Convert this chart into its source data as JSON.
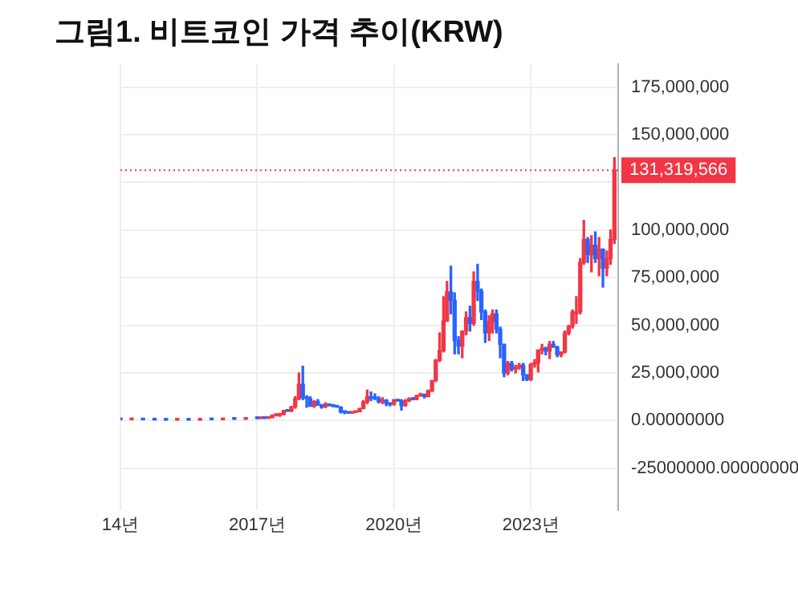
{
  "chart_data": {
    "type": "candlestick",
    "title": "그림1. 비트코인 가격 추이(KRW)",
    "x": [
      "2014-01",
      "2014-04",
      "2014-07",
      "2014-10",
      "2015-01",
      "2015-04",
      "2015-07",
      "2015-10",
      "2016-01",
      "2016-04",
      "2016-07",
      "2016-10",
      "2017-01",
      "2017-02",
      "2017-03",
      "2017-04",
      "2017-05",
      "2017-06",
      "2017-07",
      "2017-08",
      "2017-09",
      "2017-10",
      "2017-11",
      "2017-12",
      "2018-01",
      "2018-02",
      "2018-03",
      "2018-04",
      "2018-05",
      "2018-06",
      "2018-07",
      "2018-08",
      "2018-09",
      "2018-10",
      "2018-11",
      "2018-12",
      "2019-01",
      "2019-02",
      "2019-03",
      "2019-04",
      "2019-05",
      "2019-06",
      "2019-07",
      "2019-08",
      "2019-09",
      "2019-10",
      "2019-11",
      "2019-12",
      "2020-01",
      "2020-02",
      "2020-03",
      "2020-04",
      "2020-05",
      "2020-06",
      "2020-07",
      "2020-08",
      "2020-09",
      "2020-10",
      "2020-11",
      "2020-12",
      "2021-01",
      "2021-02",
      "2021-03",
      "2021-04",
      "2021-05",
      "2021-06",
      "2021-07",
      "2021-08",
      "2021-09",
      "2021-10",
      "2021-11",
      "2021-12",
      "2022-01",
      "2022-02",
      "2022-03",
      "2022-04",
      "2022-05",
      "2022-06",
      "2022-07",
      "2022-08",
      "2022-09",
      "2022-10",
      "2022-11",
      "2022-12",
      "2023-01",
      "2023-02",
      "2023-03",
      "2023-04",
      "2023-05",
      "2023-06",
      "2023-07",
      "2023-08",
      "2023-09",
      "2023-10",
      "2023-11",
      "2023-12",
      "2024-01",
      "2024-02",
      "2024-03",
      "2024-04",
      "2024-05",
      "2024-06",
      "2024-07",
      "2024-08",
      "2024-09",
      "2024-10",
      "2024-11"
    ],
    "ohlc": [
      [
        850000,
        1100000,
        450000,
        500000
      ],
      [
        500000,
        700000,
        400000,
        650000
      ],
      [
        650000,
        700000,
        400000,
        420000
      ],
      [
        420000,
        500000,
        330000,
        350000
      ],
      [
        350000,
        360000,
        180000,
        270000
      ],
      [
        270000,
        300000,
        240000,
        300000
      ],
      [
        300000,
        350000,
        230000,
        270000
      ],
      [
        270000,
        550000,
        260000,
        500000
      ],
      [
        500000,
        520000,
        420000,
        480000
      ],
      [
        480000,
        900000,
        470000,
        800000
      ],
      [
        800000,
        800000,
        620000,
        720000
      ],
      [
        720000,
        1150000,
        700000,
        1150000
      ],
      [
        1150000,
        1300000,
        950000,
        1100000
      ],
      [
        1100000,
        1400000,
        1100000,
        1350000
      ],
      [
        1350000,
        1500000,
        1100000,
        1200000
      ],
      [
        1200000,
        1600000,
        1200000,
        1550000
      ],
      [
        1550000,
        3000000,
        1500000,
        2700000
      ],
      [
        2700000,
        3300000,
        2400000,
        2850000
      ],
      [
        2850000,
        3300000,
        2200000,
        3200000
      ],
      [
        3200000,
        5300000,
        3100000,
        5300000
      ],
      [
        5300000,
        5300000,
        4900000,
        4900000
      ],
      [
        4900000,
        7400000,
        4800000,
        7200000
      ],
      [
        7200000,
        12500000,
        6500000,
        11500000
      ],
      [
        11500000,
        25000000,
        11000000,
        19000000
      ],
      [
        19000000,
        28500000,
        11000000,
        12000000
      ],
      [
        12000000,
        13000000,
        7000000,
        11500000
      ],
      [
        11500000,
        12500000,
        7500000,
        7500000
      ],
      [
        7500000,
        10500000,
        7000000,
        10000000
      ],
      [
        10000000,
        11000000,
        8000000,
        8300000
      ],
      [
        8300000,
        8400000,
        6500000,
        7200000
      ],
      [
        7200000,
        9300000,
        6800000,
        8600000
      ],
      [
        8600000,
        8700000,
        7700000,
        7900000
      ],
      [
        7900000,
        8000000,
        7200000,
        7500000
      ],
      [
        7500000,
        7700000,
        7000000,
        7100000
      ],
      [
        7100000,
        7200000,
        4000000,
        4600000
      ],
      [
        4600000,
        4700000,
        3600000,
        4300000
      ],
      [
        4300000,
        4400000,
        3800000,
        3900000
      ],
      [
        3900000,
        4600000,
        3800000,
        4300000
      ],
      [
        4300000,
        4700000,
        4300000,
        4600000
      ],
      [
        4600000,
        6400000,
        4600000,
        6300000
      ],
      [
        6300000,
        10500000,
        6200000,
        9800000
      ],
      [
        9800000,
        16000000,
        8900000,
        12500000
      ],
      [
        12500000,
        15000000,
        10500000,
        11700000
      ],
      [
        11700000,
        14000000,
        11000000,
        11600000
      ],
      [
        11600000,
        12500000,
        9300000,
        9800000
      ],
      [
        9800000,
        12000000,
        8900000,
        10700000
      ],
      [
        10700000,
        11000000,
        7800000,
        8800000
      ],
      [
        8800000,
        9000000,
        7700000,
        8500000
      ],
      [
        8500000,
        11000000,
        8100000,
        10900000
      ],
      [
        10900000,
        10900000,
        10300000,
        10300000
      ],
      [
        10300000,
        11000000,
        5500000,
        7900000
      ],
      [
        7900000,
        11000000,
        7500000,
        10400000
      ],
      [
        10400000,
        11900000,
        10000000,
        11500000
      ],
      [
        11500000,
        12000000,
        10900000,
        11100000
      ],
      [
        11100000,
        13300000,
        10900000,
        13100000
      ],
      [
        13100000,
        14300000,
        12800000,
        13700000
      ],
      [
        13700000,
        13900000,
        11900000,
        12600000
      ],
      [
        12600000,
        16000000,
        12500000,
        15600000
      ],
      [
        15600000,
        21000000,
        15200000,
        21000000
      ],
      [
        21000000,
        32000000,
        20500000,
        31700000
      ],
      [
        31700000,
        46000000,
        31000000,
        36800000
      ],
      [
        36800000,
        65000000,
        36000000,
        52300000
      ],
      [
        52300000,
        73000000,
        52000000,
        67500000
      ],
      [
        67500000,
        81000000,
        56000000,
        63000000
      ],
      [
        63000000,
        67000000,
        35000000,
        42000000
      ],
      [
        42000000,
        44000000,
        35000000,
        39000000
      ],
      [
        39000000,
        47000000,
        33000000,
        47000000
      ],
      [
        47000000,
        57000000,
        45000000,
        54000000
      ],
      [
        54000000,
        60000000,
        47000000,
        51000000
      ],
      [
        51000000,
        78000000,
        50000000,
        73000000
      ],
      [
        73000000,
        82000000,
        63000000,
        68000000
      ],
      [
        68000000,
        69000000,
        53000000,
        57000000
      ],
      [
        57000000,
        58000000,
        41000000,
        46000000
      ],
      [
        46000000,
        55000000,
        42000000,
        52000000
      ],
      [
        52000000,
        58000000,
        46000000,
        56000000
      ],
      [
        56000000,
        58000000,
        46000000,
        48000000
      ],
      [
        48000000,
        49000000,
        33000000,
        40000000
      ],
      [
        40000000,
        40000000,
        23000000,
        25000000
      ],
      [
        25000000,
        31000000,
        24000000,
        30000000
      ],
      [
        30000000,
        31000000,
        26000000,
        27000000
      ],
      [
        27000000,
        29000000,
        25000000,
        28000000
      ],
      [
        28000000,
        30000000,
        27000000,
        29000000
      ],
      [
        29000000,
        30000000,
        21000000,
        24000000
      ],
      [
        24000000,
        24000000,
        21000000,
        21500000
      ],
      [
        21500000,
        30000000,
        21000000,
        29500000
      ],
      [
        29500000,
        32000000,
        28000000,
        30500000
      ],
      [
        30500000,
        37000000,
        25500000,
        37000000
      ],
      [
        37000000,
        40000000,
        35000000,
        38000000
      ],
      [
        38000000,
        38500000,
        34500000,
        36500000
      ],
      [
        36500000,
        41500000,
        32500000,
        40000000
      ],
      [
        40000000,
        41500000,
        38500000,
        38500000
      ],
      [
        38500000,
        39000000,
        33500000,
        34500000
      ],
      [
        34500000,
        36000000,
        33500000,
        36000000
      ],
      [
        36000000,
        47000000,
        35500000,
        46000000
      ],
      [
        46000000,
        50000000,
        45000000,
        49500000
      ],
      [
        49500000,
        58000000,
        48500000,
        57000000
      ],
      [
        57000000,
        65000000,
        51000000,
        57000000
      ],
      [
        57000000,
        85000000,
        56000000,
        83000000
      ],
      [
        83000000,
        105000000,
        82000000,
        95000000
      ],
      [
        95000000,
        96000000,
        83000000,
        87000000
      ],
      [
        87000000,
        97000000,
        78000000,
        92000000
      ],
      [
        92000000,
        99000000,
        83000000,
        85000000
      ],
      [
        85000000,
        96000000,
        76000000,
        90000000
      ],
      [
        90000000,
        90000000,
        70000000,
        80000000
      ],
      [
        80000000,
        89000000,
        76000000,
        85000000
      ],
      [
        85000000,
        100000000,
        82000000,
        95000000
      ],
      [
        95000000,
        138000000,
        93000000,
        131319566
      ]
    ],
    "colors": [
      "#2962ff",
      "#f23645",
      "#2962ff",
      "#2962ff",
      "#2962ff",
      "#f23645",
      "#2962ff",
      "#f23645",
      "#2962ff",
      "#f23645",
      "#2962ff",
      "#f23645",
      "#2962ff",
      "#f23645",
      "#2962ff",
      "#f23645",
      "#f23645",
      "#f23645",
      "#f23645",
      "#f23645",
      "#2962ff",
      "#f23645",
      "#f23645",
      "#f23645",
      "#2962ff",
      "#2962ff",
      "#2962ff",
      "#f23645",
      "#2962ff",
      "#2962ff",
      "#f23645",
      "#2962ff",
      "#2962ff",
      "#2962ff",
      "#2962ff",
      "#2962ff",
      "#2962ff",
      "#f23645",
      "#f23645",
      "#f23645",
      "#f23645",
      "#f23645",
      "#2962ff",
      "#2962ff",
      "#2962ff",
      "#f23645",
      "#2962ff",
      "#2962ff",
      "#f23645",
      "#2962ff",
      "#2962ff",
      "#f23645",
      "#f23645",
      "#2962ff",
      "#f23645",
      "#f23645",
      "#2962ff",
      "#f23645",
      "#f23645",
      "#f23645",
      "#f23645",
      "#f23645",
      "#f23645",
      "#2962ff",
      "#2962ff",
      "#2962ff",
      "#f23645",
      "#f23645",
      "#2962ff",
      "#f23645",
      "#2962ff",
      "#2962ff",
      "#2962ff",
      "#f23645",
      "#f23645",
      "#2962ff",
      "#2962ff",
      "#2962ff",
      "#f23645",
      "#2962ff",
      "#f23645",
      "#f23645",
      "#2962ff",
      "#2962ff",
      "#f23645",
      "#f23645",
      "#f23645",
      "#f23645",
      "#2962ff",
      "#f23645",
      "#2962ff",
      "#2962ff",
      "#f23645",
      "#f23645",
      "#f23645",
      "#f23645",
      "#f23645",
      "#f23645",
      "#f23645",
      "#2962ff",
      "#f23645",
      "#2962ff",
      "#f23645",
      "#2962ff",
      "#f23645",
      "#f23645",
      "#f23645"
    ],
    "xlim": [
      "2014-01",
      "2024-12"
    ],
    "xticks": [
      {
        "value": "2014-01",
        "label": "14년"
      },
      {
        "value": "2017-01",
        "label": "2017년"
      },
      {
        "value": "2020-01",
        "label": "2020년"
      },
      {
        "value": "2023-01",
        "label": "2023년"
      }
    ],
    "ylim": [
      -47000000,
      187000000
    ],
    "yticks": [
      {
        "value": -25000000,
        "label": "-25000000.00000000"
      },
      {
        "value": 0,
        "label": "0.00000000"
      },
      {
        "value": 25000000,
        "label": "25,000,000"
      },
      {
        "value": 50000000,
        "label": "50,000,000"
      },
      {
        "value": 75000000,
        "label": "75,000,000"
      },
      {
        "value": 100000000,
        "label": "100,000,000"
      },
      {
        "value": 125000000,
        "label": null
      },
      {
        "value": 150000000,
        "label": "150,000,000"
      },
      {
        "value": 175000000,
        "label": "175,000,000"
      }
    ],
    "ref_lines": [
      {
        "axis": "y",
        "value": 131319566,
        "label": "131,319,566",
        "color": "#f23645",
        "line_style": "dotted"
      }
    ],
    "grid": true
  }
}
